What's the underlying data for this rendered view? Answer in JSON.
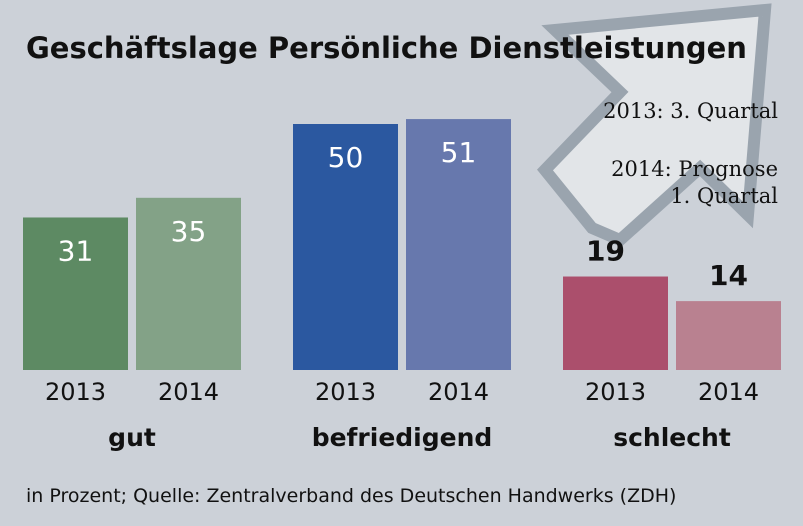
{
  "chart_data": {
    "type": "bar",
    "title": "Geschäftslage Persönliche Dienstleistungen",
    "notes": [
      "2013: 3. Quartal",
      "2014: Prognose",
      "1. Quartal"
    ],
    "categories": [
      "gut",
      "befriedigend",
      "schlecht"
    ],
    "series": [
      {
        "name": "2013",
        "values": [
          31,
          50,
          19
        ]
      },
      {
        "name": "2014",
        "values": [
          35,
          51,
          14
        ]
      }
    ],
    "colors": {
      "gut": [
        "#5d8a63",
        "#83a287"
      ],
      "befriedigend": [
        "#2b58a0",
        "#6778ad"
      ],
      "schlecht": [
        "#ab4f6c",
        "#b98190"
      ]
    },
    "ylim": [
      0,
      60
    ],
    "xlabel": "",
    "ylabel": "",
    "source": "in Prozent; Quelle: Zentralverband des Deutschen Handwerks (ZDH)",
    "grid": false,
    "legend": "none"
  }
}
